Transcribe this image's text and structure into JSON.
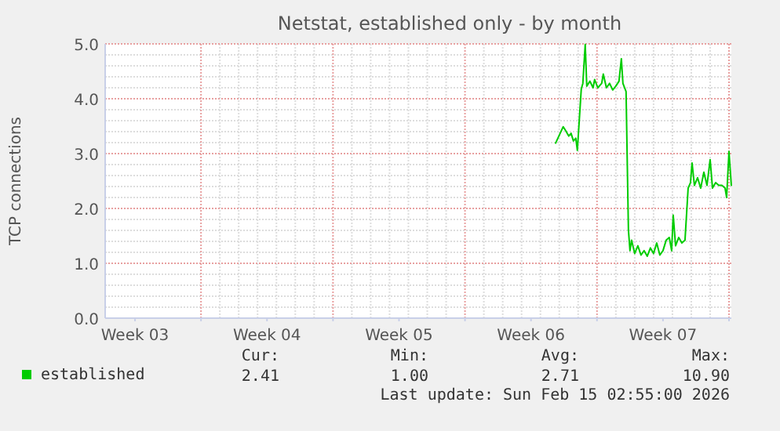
{
  "chart_data": {
    "type": "line",
    "title": "Netstat, established only - by month",
    "ylabel": "TCP connections",
    "xlim": [
      "2026-01-12T22:00",
      "2026-02-15T03:00"
    ],
    "xticks": [
      {
        "value": "2026-01-14T12:00",
        "label": "Week 03"
      },
      {
        "value": "2026-01-18",
        "label": null
      },
      {
        "value": "2026-01-21T12:00",
        "label": "Week 04"
      },
      {
        "value": "2026-01-25",
        "label": null
      },
      {
        "value": "2026-01-28T12:00",
        "label": "Week 05"
      },
      {
        "value": "2026-02-01",
        "label": null
      },
      {
        "value": "2026-02-04T12:00",
        "label": "Week 06"
      },
      {
        "value": "2026-02-08",
        "label": null
      },
      {
        "value": "2026-02-11T12:00",
        "label": "Week 07"
      },
      {
        "value": "2026-02-15",
        "label": null
      }
    ],
    "ylim": [
      0,
      5
    ],
    "yticks": [
      {
        "value": 0,
        "label": "0.0"
      },
      {
        "value": 1,
        "label": "1.0"
      },
      {
        "value": 2,
        "label": "2.0"
      },
      {
        "value": 3,
        "label": "3.0"
      },
      {
        "value": 4,
        "label": "4.0"
      },
      {
        "value": 5,
        "label": "5.0"
      }
    ],
    "grid": true,
    "legend": "bottom left",
    "series": [
      {
        "name": "established",
        "color": "#00cc00",
        "x": [
          "2026-02-05T19:00",
          "2026-02-06T05:00",
          "2026-02-06T08:00",
          "2026-02-06T12:00",
          "2026-02-06T15:00",
          "2026-02-06T18:00",
          "2026-02-06T21:00",
          "2026-02-06T23:00",
          "2026-02-07T04:00",
          "2026-02-07T06:00",
          "2026-02-07T09:00",
          "2026-02-07T11:00",
          "2026-02-07T15:00",
          "2026-02-07T19:00",
          "2026-02-07T21:00",
          "2026-02-08T01:00",
          "2026-02-08T06:00",
          "2026-02-08T08:00",
          "2026-02-08T12:00",
          "2026-02-08T16:00",
          "2026-02-08T20:00",
          "2026-02-09T00:00",
          "2026-02-09T04:00",
          "2026-02-09T07:00",
          "2026-02-09T09:00",
          "2026-02-09T13:00",
          "2026-02-09T16:00",
          "2026-02-09T18:00",
          "2026-02-09T20:00",
          "2026-02-10T00:00",
          "2026-02-10T04:00",
          "2026-02-10T08:00",
          "2026-02-10T12:00",
          "2026-02-10T16:00",
          "2026-02-10T20:00",
          "2026-02-11T00:00",
          "2026-02-11T04:00",
          "2026-02-11T08:00",
          "2026-02-11T12:00",
          "2026-02-11T16:00",
          "2026-02-11T20:00",
          "2026-02-11T23:00",
          "2026-02-12T01:00",
          "2026-02-12T04:00",
          "2026-02-12T08:00",
          "2026-02-12T12:00",
          "2026-02-12T16:00",
          "2026-02-12T20:00",
          "2026-02-12T23:00",
          "2026-02-13T01:00",
          "2026-02-13T04:00",
          "2026-02-13T08:00",
          "2026-02-13T12:00",
          "2026-02-13T16:00",
          "2026-02-13T20:00",
          "2026-02-14T00:00",
          "2026-02-14T03:00",
          "2026-02-14T07:00",
          "2026-02-14T11:00",
          "2026-02-14T15:00",
          "2026-02-14T19:00",
          "2026-02-14T21:00",
          "2026-02-15T00:00",
          "2026-02-15T03:00"
        ],
        "values": [
          3.18,
          3.49,
          3.42,
          3.32,
          3.37,
          3.23,
          3.28,
          3.06,
          4.18,
          4.28,
          4.99,
          4.23,
          4.32,
          4.2,
          4.35,
          4.2,
          4.28,
          4.45,
          4.2,
          4.28,
          4.16,
          4.23,
          4.32,
          4.73,
          4.28,
          4.13,
          1.61,
          1.23,
          1.42,
          1.18,
          1.32,
          1.15,
          1.23,
          1.13,
          1.28,
          1.18,
          1.37,
          1.15,
          1.23,
          1.42,
          1.47,
          1.23,
          1.88,
          1.32,
          1.47,
          1.37,
          1.42,
          2.37,
          2.47,
          2.83,
          2.42,
          2.56,
          2.37,
          2.66,
          2.42,
          2.89,
          2.37,
          2.47,
          2.42,
          2.42,
          2.37,
          2.2,
          3.04,
          2.41
        ]
      }
    ],
    "annotations": [
      "Cur:",
      "Min:",
      "Avg:",
      "Max:",
      "2.41",
      "1.00",
      "2.71",
      "10.90",
      "Last update: Sun Feb 15 02:55:00 2026"
    ]
  }
}
